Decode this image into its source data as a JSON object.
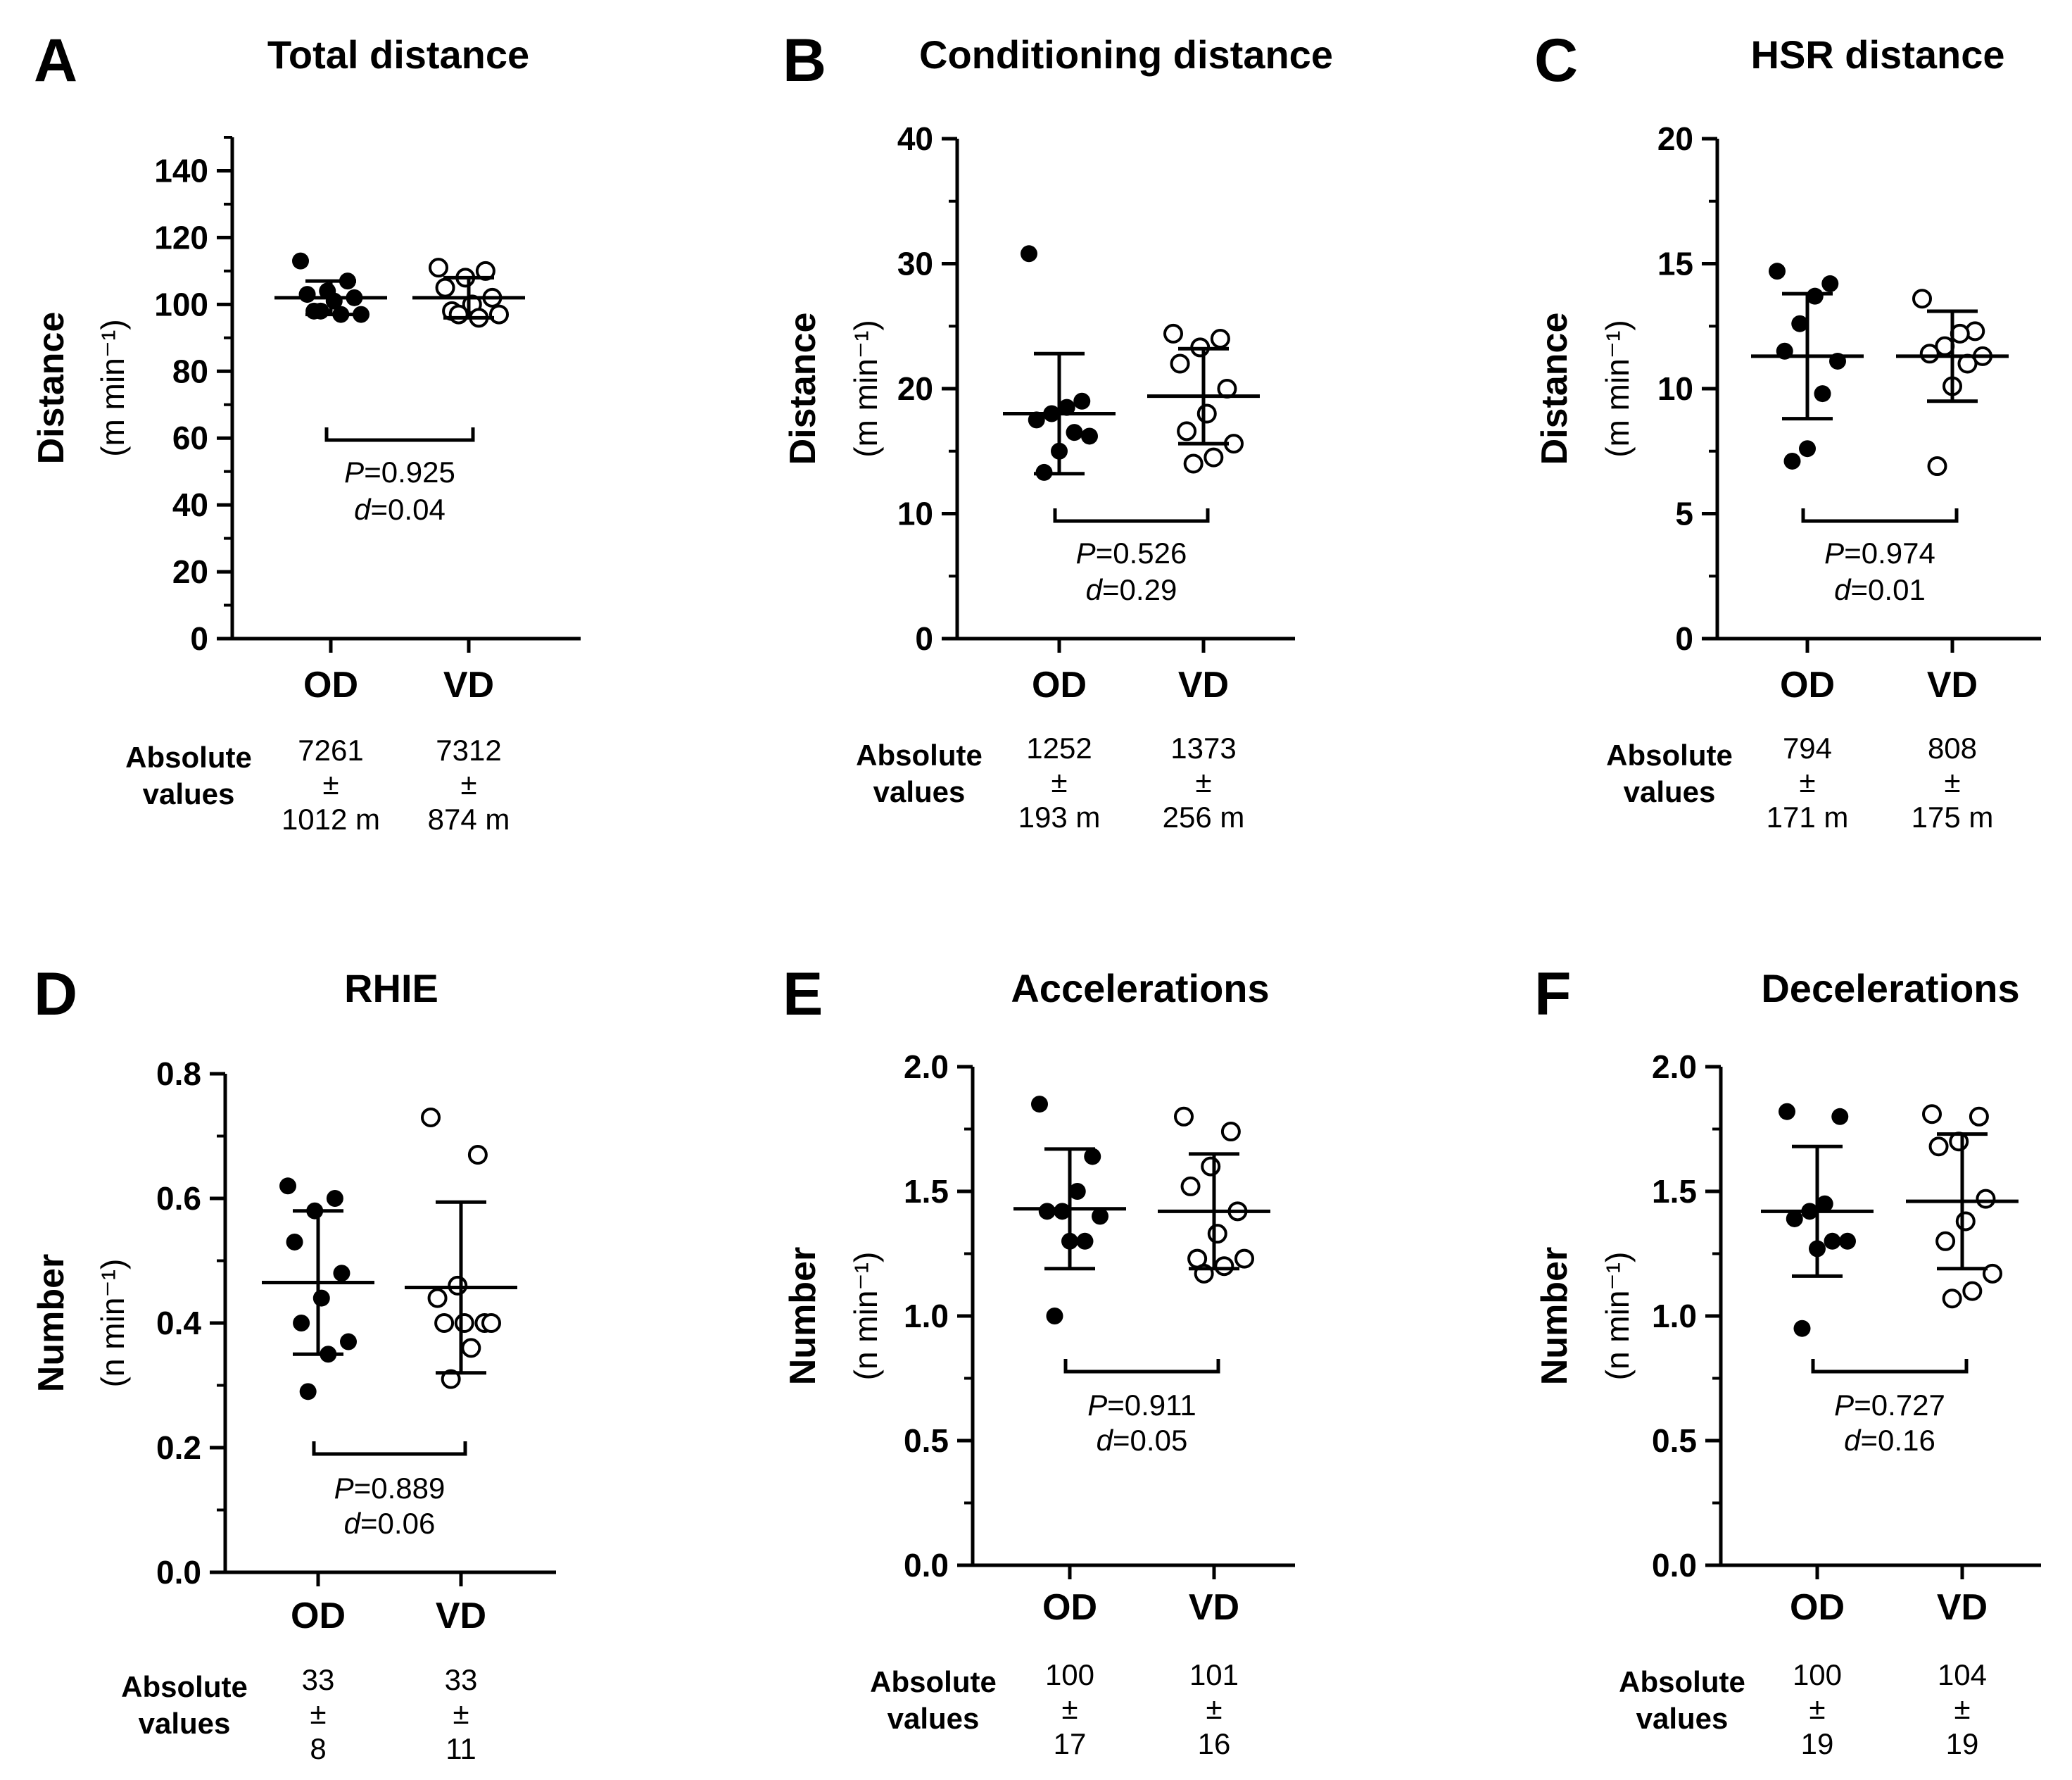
{
  "figure": {
    "absolute_label_line1": "Absolute",
    "absolute_label_line2": "values",
    "pm": "±"
  },
  "chart_data": [
    {
      "type": "scatter",
      "panel": "A",
      "title": "Total distance",
      "ylabel": "Distance",
      "yunit": "(m min⁻¹)",
      "ylim": [
        0,
        150
      ],
      "yticks": [
        0,
        20,
        40,
        60,
        80,
        100,
        120,
        140
      ],
      "minor_step": 10,
      "categories": [
        "OD",
        "VD"
      ],
      "series": [
        {
          "name": "OD",
          "filled": true,
          "mean": 102,
          "sd": 5,
          "points": [
            113,
            107,
            104,
            103,
            102,
            101,
            98,
            97,
            97,
            98
          ]
        },
        {
          "name": "VD",
          "filled": false,
          "mean": 102,
          "sd": 6,
          "points": [
            111,
            110,
            108,
            105,
            102,
            100,
            98,
            97,
            96,
            97
          ]
        }
      ],
      "stat": {
        "P": "=0.925",
        "d": "=0.04"
      },
      "absolute": [
        {
          "mean": "7261",
          "sd": "1012 m"
        },
        {
          "mean": "7312",
          "sd": "874 m"
        }
      ]
    },
    {
      "type": "scatter",
      "panel": "B",
      "title": "Conditioning distance",
      "ylabel": "Distance",
      "yunit": "(m min⁻¹)",
      "ylim": [
        0,
        40
      ],
      "yticks": [
        0,
        10,
        20,
        30,
        40
      ],
      "minor_step": 5,
      "categories": [
        "OD",
        "VD"
      ],
      "series": [
        {
          "name": "OD",
          "filled": true,
          "mean": 18,
          "sd": 4.8,
          "points": [
            30.8,
            19,
            18.5,
            18,
            17.5,
            16.2,
            16.5,
            15,
            13.3
          ]
        },
        {
          "name": "VD",
          "filled": false,
          "mean": 19.4,
          "sd": 3.8,
          "points": [
            24.4,
            24,
            23.3,
            22,
            20,
            18,
            16.6,
            15.6,
            14.5,
            14
          ]
        }
      ],
      "stat": {
        "P": "=0.526",
        "d": "=0.29"
      },
      "absolute": [
        {
          "mean": "1252",
          "sd": "193 m"
        },
        {
          "mean": "1373",
          "sd": "256 m"
        }
      ]
    },
    {
      "type": "scatter",
      "panel": "C",
      "title": "HSR distance",
      "ylabel": "Distance",
      "yunit": "(m min⁻¹)",
      "ylim": [
        0,
        20
      ],
      "yticks": [
        0,
        5,
        10,
        15,
        20
      ],
      "minor_step": 2.5,
      "categories": [
        "OD",
        "VD"
      ],
      "series": [
        {
          "name": "OD",
          "filled": true,
          "mean": 11.3,
          "sd": 2.5,
          "points": [
            14.7,
            14.2,
            13.7,
            12.6,
            11.5,
            11.1,
            9.8,
            7.6,
            7.1
          ]
        },
        {
          "name": "VD",
          "filled": false,
          "mean": 11.3,
          "sd": 1.8,
          "points": [
            13.6,
            12.3,
            12.2,
            11.7,
            11.4,
            11.3,
            11,
            10.1,
            6.9
          ]
        }
      ],
      "stat": {
        "P": "=0.974",
        "d": "=0.01"
      },
      "absolute": [
        {
          "mean": "794",
          "sd": "171 m"
        },
        {
          "mean": "808",
          "sd": "175 m"
        }
      ]
    },
    {
      "type": "scatter",
      "panel": "D",
      "title": "RHIE",
      "ylabel": "Number",
      "yunit": "(n min⁻¹)",
      "ylim": [
        0,
        0.8
      ],
      "yticks": [
        0.0,
        0.2,
        0.4,
        0.6,
        0.8
      ],
      "minor_step": 0.1,
      "categories": [
        "OD",
        "VD"
      ],
      "series": [
        {
          "name": "OD",
          "filled": true,
          "mean": 0.465,
          "sd": 0.115,
          "points": [
            0.62,
            0.6,
            0.58,
            0.53,
            0.48,
            0.44,
            0.4,
            0.37,
            0.35,
            0.29
          ]
        },
        {
          "name": "VD",
          "filled": false,
          "mean": 0.457,
          "sd": 0.137,
          "points": [
            0.73,
            0.67,
            0.46,
            0.44,
            0.4,
            0.4,
            0.4,
            0.4,
            0.36,
            0.31
          ]
        }
      ],
      "stat": {
        "P": "=0.889",
        "d": "=0.06"
      },
      "absolute": [
        {
          "mean": "33",
          "sd": "8"
        },
        {
          "mean": "33",
          "sd": "11"
        }
      ]
    },
    {
      "type": "scatter",
      "panel": "E",
      "title": "Accelerations",
      "ylabel": "Number",
      "yunit": "(n min⁻¹)",
      "ylim": [
        0,
        2.0
      ],
      "yticks": [
        0.0,
        0.5,
        1.0,
        1.5,
        2.0
      ],
      "minor_step": 0.25,
      "categories": [
        "OD",
        "VD"
      ],
      "series": [
        {
          "name": "OD",
          "filled": true,
          "mean": 1.43,
          "sd": 0.24,
          "points": [
            1.85,
            1.64,
            1.5,
            1.42,
            1.42,
            1.4,
            1.3,
            1.3,
            1.0
          ]
        },
        {
          "name": "VD",
          "filled": false,
          "mean": 1.42,
          "sd": 0.23,
          "points": [
            1.8,
            1.74,
            1.6,
            1.52,
            1.42,
            1.33,
            1.23,
            1.23,
            1.2,
            1.17
          ]
        }
      ],
      "stat": {
        "P": "=0.911",
        "d": "=0.05"
      },
      "absolute": [
        {
          "mean": "100",
          "sd": "17"
        },
        {
          "mean": "101",
          "sd": "16"
        }
      ]
    },
    {
      "type": "scatter",
      "panel": "F",
      "title": "Decelerations",
      "ylabel": "Number",
      "yunit": "(n min⁻¹)",
      "ylim": [
        0,
        2.0
      ],
      "yticks": [
        0.0,
        0.5,
        1.0,
        1.5,
        2.0
      ],
      "minor_step": 0.25,
      "categories": [
        "OD",
        "VD"
      ],
      "series": [
        {
          "name": "OD",
          "filled": true,
          "mean": 1.42,
          "sd": 0.26,
          "points": [
            1.82,
            1.8,
            1.45,
            1.42,
            1.39,
            1.3,
            1.3,
            1.27,
            0.95
          ]
        },
        {
          "name": "VD",
          "filled": false,
          "mean": 1.46,
          "sd": 0.27,
          "points": [
            1.81,
            1.8,
            1.7,
            1.68,
            1.47,
            1.38,
            1.3,
            1.17,
            1.1,
            1.07
          ]
        }
      ],
      "stat": {
        "P": "=0.727",
        "d": "=0.16"
      },
      "absolute": [
        {
          "mean": "100",
          "sd": "19"
        },
        {
          "mean": "104",
          "sd": "19"
        }
      ]
    }
  ]
}
